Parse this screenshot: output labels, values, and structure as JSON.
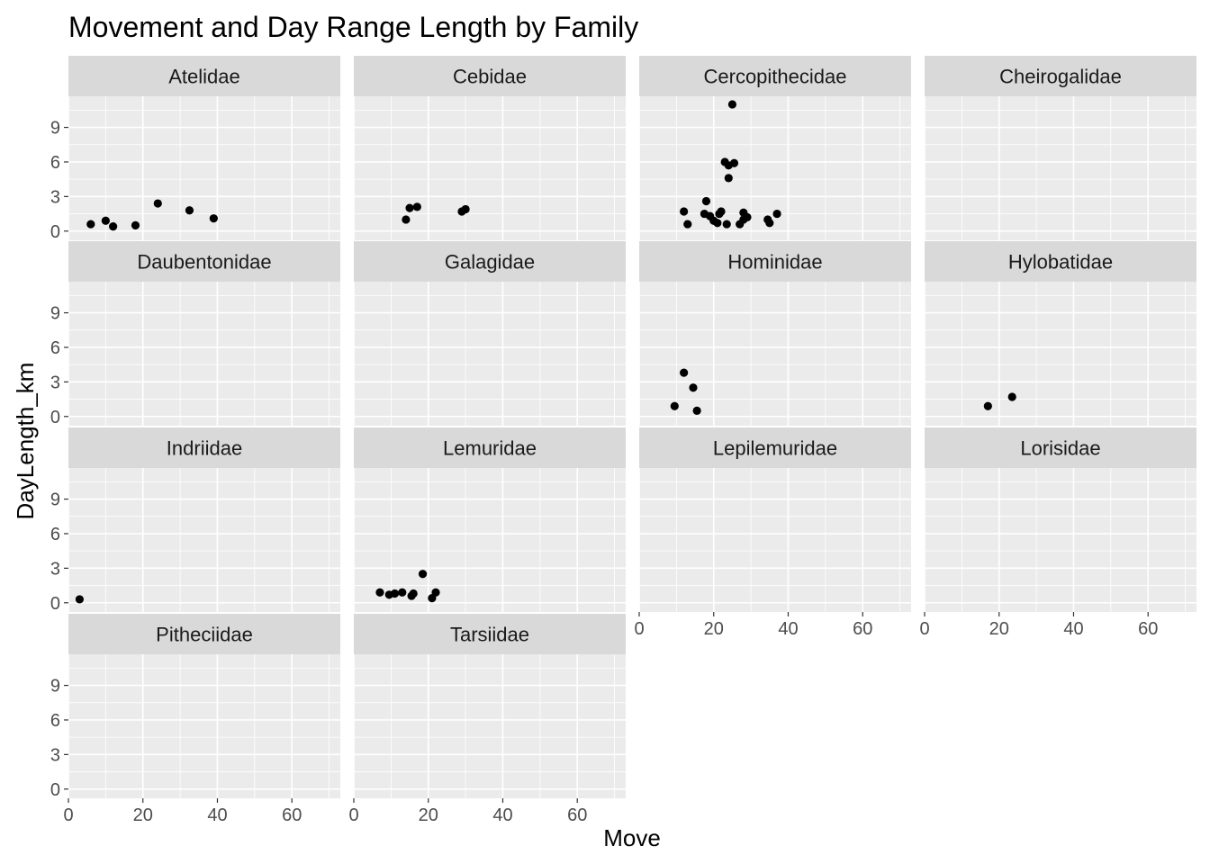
{
  "chart_data": {
    "type": "scatter",
    "title": "Movement and Day Range Length by Family",
    "xlabel": "Move",
    "ylabel": "DayLength_km",
    "facet_layout": "wrap-4-columns",
    "xlim": [
      0,
      73
    ],
    "ylim": [
      -0.8,
      11.7
    ],
    "x_ticks": [
      0,
      20,
      40,
      60
    ],
    "y_ticks": [
      0,
      3,
      6,
      9
    ],
    "grid": true,
    "legend": "none",
    "point_color": "#000000",
    "panel_color": "#ebebeb",
    "strip_color": "#d9d9d9",
    "facets": [
      {
        "family": "Atelidae",
        "points": [
          [
            6,
            0.6
          ],
          [
            10,
            0.9
          ],
          [
            12,
            0.4
          ],
          [
            18,
            0.5
          ],
          [
            24,
            2.4
          ],
          [
            32.5,
            1.8
          ],
          [
            39,
            1.1
          ]
        ]
      },
      {
        "family": "Cebidae",
        "points": [
          [
            14,
            1.0
          ],
          [
            15,
            2.0
          ],
          [
            17,
            2.1
          ],
          [
            29,
            1.7
          ],
          [
            30,
            1.9
          ]
        ]
      },
      {
        "family": "Cercopithecidae",
        "points": [
          [
            25,
            11.0
          ],
          [
            23,
            6.0
          ],
          [
            24,
            5.7
          ],
          [
            25.5,
            5.9
          ],
          [
            24,
            4.6
          ],
          [
            18,
            2.6
          ],
          [
            12,
            1.7
          ],
          [
            13,
            0.6
          ],
          [
            17.5,
            1.5
          ],
          [
            19,
            1.3
          ],
          [
            20,
            0.9
          ],
          [
            21,
            0.7
          ],
          [
            21.5,
            1.5
          ],
          [
            22,
            1.7
          ],
          [
            23.5,
            0.6
          ],
          [
            27,
            0.6
          ],
          [
            28,
            1.6
          ],
          [
            28,
            1.0
          ],
          [
            29,
            1.2
          ],
          [
            34.5,
            1.0
          ],
          [
            35,
            0.7
          ],
          [
            37,
            1.5
          ]
        ]
      },
      {
        "family": "Cheirogalidae",
        "points": []
      },
      {
        "family": "Daubentonidae",
        "points": []
      },
      {
        "family": "Galagidae",
        "points": []
      },
      {
        "family": "Hominidae",
        "points": [
          [
            9.5,
            0.9
          ],
          [
            12,
            3.8
          ],
          [
            14.5,
            2.5
          ],
          [
            15.5,
            0.5
          ]
        ]
      },
      {
        "family": "Hylobatidae",
        "points": [
          [
            17,
            0.9
          ],
          [
            23.5,
            1.7
          ]
        ]
      },
      {
        "family": "Indriidae",
        "points": [
          [
            3,
            0.3
          ]
        ]
      },
      {
        "family": "Lemuridae",
        "points": [
          [
            7,
            0.9
          ],
          [
            9.5,
            0.7
          ],
          [
            11,
            0.8
          ],
          [
            13,
            0.9
          ],
          [
            15.5,
            0.6
          ],
          [
            16,
            0.8
          ],
          [
            18.5,
            2.5
          ],
          [
            21,
            0.4
          ],
          [
            22,
            0.9
          ]
        ]
      },
      {
        "family": "Lepilemuridae",
        "points": []
      },
      {
        "family": "Lorisidae",
        "points": []
      },
      {
        "family": "Pitheciidae",
        "points": []
      },
      {
        "family": "Tarsiidae",
        "points": []
      }
    ]
  }
}
